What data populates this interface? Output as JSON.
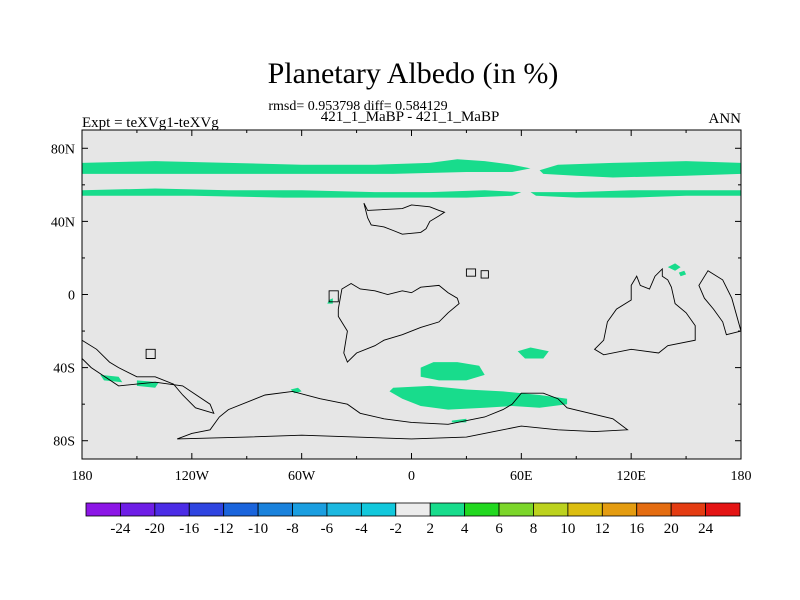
{
  "chart_data": {
    "type": "heatmap",
    "title": "Planetary Albedo (in %)",
    "stats_line": "rmsd= 0.953798 diff= 0.584129",
    "subtitle": "421_1_MaBP - 421_1_MaBP",
    "left_label": "Expt = teXVg1-teXVg",
    "right_label": "ANN",
    "projection": "cylindrical equidistant",
    "xlim": [
      -180,
      180
    ],
    "ylim": [
      -90,
      90
    ],
    "x_ticks": [
      {
        "value": -180,
        "label": "180"
      },
      {
        "value": -120,
        "label": "120W"
      },
      {
        "value": -60,
        "label": "60W"
      },
      {
        "value": 0,
        "label": "0"
      },
      {
        "value": 60,
        "label": "60E"
      },
      {
        "value": 120,
        "label": "120E"
      },
      {
        "value": 180,
        "label": "180"
      }
    ],
    "y_ticks": [
      {
        "value": 80,
        "label": "80N"
      },
      {
        "value": 40,
        "label": "40N"
      },
      {
        "value": 0,
        "label": "0"
      },
      {
        "value": -40,
        "label": "40S"
      },
      {
        "value": -80,
        "label": "80S"
      }
    ],
    "background_class_color": "#e6e6e6",
    "colorbar": {
      "levels": [
        "-24",
        "-20",
        "-16",
        "-12",
        "-10",
        "-8",
        "-6",
        "-4",
        "-2",
        "2",
        "4",
        "6",
        "8",
        "10",
        "12",
        "16",
        "20",
        "24"
      ],
      "colors": [
        "#8c16e6",
        "#6e1ee6",
        "#4b2ce6",
        "#2e44e0",
        "#1a64dc",
        "#1a82dc",
        "#1a9ee0",
        "#1cb8e0",
        "#12c8dc",
        "#ececec",
        "#18dc8c",
        "#22d820",
        "#7cd62a",
        "#bcd21e",
        "#dcbe10",
        "#e49c10",
        "#e46c10",
        "#e43c12",
        "#e41414"
      ]
    },
    "regions_value_class": "2 to 4",
    "regions_color": "#18dc8c",
    "regions": [
      {
        "name": "arctic-band-west",
        "points": [
          [
            -180,
            72
          ],
          [
            -140,
            73
          ],
          [
            -100,
            72
          ],
          [
            -60,
            71
          ],
          [
            -20,
            71
          ],
          [
            10,
            72
          ],
          [
            25,
            74
          ],
          [
            40,
            73
          ],
          [
            55,
            71
          ],
          [
            65,
            69
          ],
          [
            55,
            67
          ],
          [
            30,
            67
          ],
          [
            -10,
            66
          ],
          [
            -60,
            66
          ],
          [
            -110,
            66
          ],
          [
            -150,
            66
          ],
          [
            -180,
            66
          ]
        ]
      },
      {
        "name": "arctic-band-east",
        "points": [
          [
            70,
            68
          ],
          [
            80,
            71
          ],
          [
            110,
            72
          ],
          [
            150,
            73
          ],
          [
            180,
            72
          ],
          [
            180,
            66
          ],
          [
            150,
            65
          ],
          [
            110,
            64
          ],
          [
            90,
            65
          ],
          [
            72,
            66
          ]
        ]
      },
      {
        "name": "subarctic-band",
        "points": [
          [
            -180,
            57
          ],
          [
            -140,
            58
          ],
          [
            -100,
            57
          ],
          [
            -60,
            57
          ],
          [
            -20,
            56
          ],
          [
            10,
            56
          ],
          [
            40,
            57
          ],
          [
            60,
            56
          ],
          [
            55,
            54
          ],
          [
            30,
            53
          ],
          [
            -20,
            53
          ],
          [
            -70,
            53
          ],
          [
            -120,
            54
          ],
          [
            -180,
            54
          ]
        ]
      },
      {
        "name": "subarctic-band-east",
        "points": [
          [
            65,
            56
          ],
          [
            90,
            56
          ],
          [
            120,
            57
          ],
          [
            150,
            57
          ],
          [
            180,
            57
          ],
          [
            180,
            54
          ],
          [
            150,
            54
          ],
          [
            120,
            53
          ],
          [
            90,
            53
          ],
          [
            68,
            54
          ]
        ]
      },
      {
        "name": "south-atlantic-blob",
        "points": [
          [
            5,
            -40
          ],
          [
            12,
            -37
          ],
          [
            25,
            -37
          ],
          [
            37,
            -39
          ],
          [
            40,
            -44
          ],
          [
            30,
            -47
          ],
          [
            15,
            -47
          ],
          [
            5,
            -45
          ]
        ]
      },
      {
        "name": "southern-ocean-band",
        "points": [
          [
            -10,
            -51
          ],
          [
            10,
            -50
          ],
          [
            30,
            -52
          ],
          [
            50,
            -53
          ],
          [
            70,
            -55
          ],
          [
            85,
            -57
          ],
          [
            85,
            -60
          ],
          [
            70,
            -62
          ],
          [
            55,
            -61
          ],
          [
            40,
            -62
          ],
          [
            20,
            -63
          ],
          [
            5,
            -61
          ],
          [
            -5,
            -57
          ],
          [
            -12,
            -53
          ]
        ]
      },
      {
        "name": "indian-ocean-blob",
        "points": [
          [
            58,
            -31
          ],
          [
            65,
            -29
          ],
          [
            75,
            -31
          ],
          [
            72,
            -35
          ],
          [
            62,
            -35
          ]
        ]
      },
      {
        "name": "small-blob-east",
        "points": [
          [
            140,
            15
          ],
          [
            144,
            17
          ],
          [
            147,
            15
          ],
          [
            144,
            13
          ]
        ]
      },
      {
        "name": "small-blob-east-2",
        "points": [
          [
            146,
            12
          ],
          [
            149,
            13
          ],
          [
            150,
            11
          ],
          [
            147,
            10
          ]
        ]
      },
      {
        "name": "small-blob-africa-west",
        "points": [
          [
            -45,
            -3
          ],
          [
            -43,
            -2
          ],
          [
            -43,
            -5
          ],
          [
            -46,
            -5
          ]
        ]
      },
      {
        "name": "small-blob-pacific-south",
        "points": [
          [
            -170,
            -44
          ],
          [
            -160,
            -45
          ],
          [
            -158,
            -48
          ],
          [
            -168,
            -47
          ]
        ]
      },
      {
        "name": "small-blob-pacific-south-2",
        "points": [
          [
            -150,
            -47
          ],
          [
            -138,
            -48
          ],
          [
            -140,
            -51
          ],
          [
            -150,
            -50
          ]
        ]
      },
      {
        "name": "small-blob-samerica",
        "points": [
          [
            -66,
            -52
          ],
          [
            -62,
            -51
          ],
          [
            -60,
            -53
          ],
          [
            -64,
            -54
          ]
        ]
      },
      {
        "name": "small-blob-indian-2",
        "points": [
          [
            22,
            -69
          ],
          [
            30,
            -68
          ],
          [
            30,
            -70
          ],
          [
            22,
            -70
          ]
        ]
      }
    ],
    "coastlines": [
      {
        "name": "continent-north",
        "points": [
          [
            -26,
            50
          ],
          [
            -24,
            46
          ],
          [
            -5,
            47
          ],
          [
            0,
            49
          ],
          [
            10,
            48
          ],
          [
            15,
            46
          ],
          [
            18,
            45
          ],
          [
            15,
            43
          ],
          [
            10,
            40
          ],
          [
            8,
            36
          ],
          [
            5,
            34
          ],
          [
            -5,
            33
          ],
          [
            -10,
            35
          ],
          [
            -15,
            37
          ],
          [
            -22,
            38
          ],
          [
            -24,
            42
          ]
        ]
      },
      {
        "name": "continent-central",
        "points": [
          [
            -40,
            -8
          ],
          [
            -38,
            3
          ],
          [
            -33,
            6
          ],
          [
            -28,
            3
          ],
          [
            -20,
            2
          ],
          [
            -13,
            0
          ],
          [
            -5,
            2
          ],
          [
            0,
            1
          ],
          [
            5,
            4
          ],
          [
            15,
            5
          ],
          [
            20,
            1
          ],
          [
            25,
            -2
          ],
          [
            26,
            -5
          ],
          [
            20,
            -10
          ],
          [
            15,
            -15
          ],
          [
            5,
            -18
          ],
          [
            -5,
            -22
          ],
          [
            -15,
            -25
          ],
          [
            -20,
            -28
          ],
          [
            -30,
            -32
          ],
          [
            -35,
            -37
          ],
          [
            -37,
            -32
          ],
          [
            -35,
            -20
          ],
          [
            -40,
            -12
          ]
        ]
      },
      {
        "name": "continent-east",
        "points": [
          [
            107,
            -15
          ],
          [
            112,
            -8
          ],
          [
            120,
            -3
          ],
          [
            120,
            5
          ],
          [
            123,
            10
          ],
          [
            125,
            5
          ],
          [
            130,
            3
          ],
          [
            133,
            10
          ],
          [
            137,
            14
          ],
          [
            137,
            10
          ],
          [
            140,
            8
          ],
          [
            142,
            4
          ],
          [
            144,
            -5
          ],
          [
            150,
            -10
          ],
          [
            155,
            -17
          ],
          [
            155,
            -25
          ],
          [
            140,
            -28
          ],
          [
            135,
            -32
          ],
          [
            120,
            -30
          ],
          [
            105,
            -33
          ],
          [
            100,
            -30
          ],
          [
            105,
            -25
          ]
        ]
      },
      {
        "name": "continent-far-east",
        "points": [
          [
            162,
            13
          ],
          [
            170,
            8
          ],
          [
            175,
            -2
          ],
          [
            180,
            -20
          ],
          [
            172,
            -22
          ],
          [
            170,
            -15
          ],
          [
            165,
            -8
          ],
          [
            160,
            -2
          ],
          [
            157,
            5
          ]
        ]
      },
      {
        "name": "continent-south",
        "points": [
          [
            -128,
            -79
          ],
          [
            -120,
            -76
          ],
          [
            -110,
            -74
          ],
          [
            -105,
            -67
          ],
          [
            -100,
            -63
          ],
          [
            -80,
            -55
          ],
          [
            -65,
            -53
          ],
          [
            -50,
            -57
          ],
          [
            -35,
            -60
          ],
          [
            -28,
            -65
          ],
          [
            -15,
            -68
          ],
          [
            0,
            -70
          ],
          [
            20,
            -71
          ],
          [
            40,
            -67
          ],
          [
            50,
            -63
          ],
          [
            55,
            -60
          ],
          [
            60,
            -54
          ],
          [
            72,
            -54
          ],
          [
            80,
            -57
          ],
          [
            85,
            -62
          ],
          [
            110,
            -68
          ],
          [
            118,
            -74
          ],
          [
            100,
            -75
          ],
          [
            80,
            -74
          ],
          [
            60,
            -72
          ],
          [
            45,
            -75
          ],
          [
            30,
            -78
          ],
          [
            0,
            -79
          ],
          [
            -30,
            -78
          ],
          [
            -60,
            -77
          ],
          [
            -90,
            -78
          ]
        ]
      },
      {
        "name": "continent-southwest",
        "points": [
          [
            -180,
            -25
          ],
          [
            -172,
            -30
          ],
          [
            -165,
            -37
          ],
          [
            -160,
            -40
          ],
          [
            -150,
            -45
          ],
          [
            -140,
            -45
          ],
          [
            -130,
            -49
          ],
          [
            -125,
            -55
          ],
          [
            -118,
            -62
          ],
          [
            -108,
            -65
          ],
          [
            -110,
            -60
          ],
          [
            -125,
            -50
          ],
          [
            -140,
            -48
          ],
          [
            -160,
            -50
          ],
          [
            -175,
            -40
          ],
          [
            -180,
            -35
          ]
        ]
      },
      {
        "name": "island-pacific",
        "points": [
          [
            -145,
            -30
          ],
          [
            -140,
            -30
          ],
          [
            -140,
            -35
          ],
          [
            -145,
            -35
          ]
        ]
      },
      {
        "name": "island-central-north",
        "points": [
          [
            30,
            14
          ],
          [
            35,
            14
          ],
          [
            35,
            10
          ],
          [
            30,
            10
          ]
        ]
      },
      {
        "name": "island-central-north-2",
        "points": [
          [
            38,
            13
          ],
          [
            42,
            13
          ],
          [
            42,
            9
          ],
          [
            38,
            9
          ]
        ]
      },
      {
        "name": "island-atlantic",
        "points": [
          [
            -45,
            2
          ],
          [
            -40,
            2
          ],
          [
            -40,
            -4
          ],
          [
            -45,
            -4
          ]
        ]
      }
    ]
  }
}
